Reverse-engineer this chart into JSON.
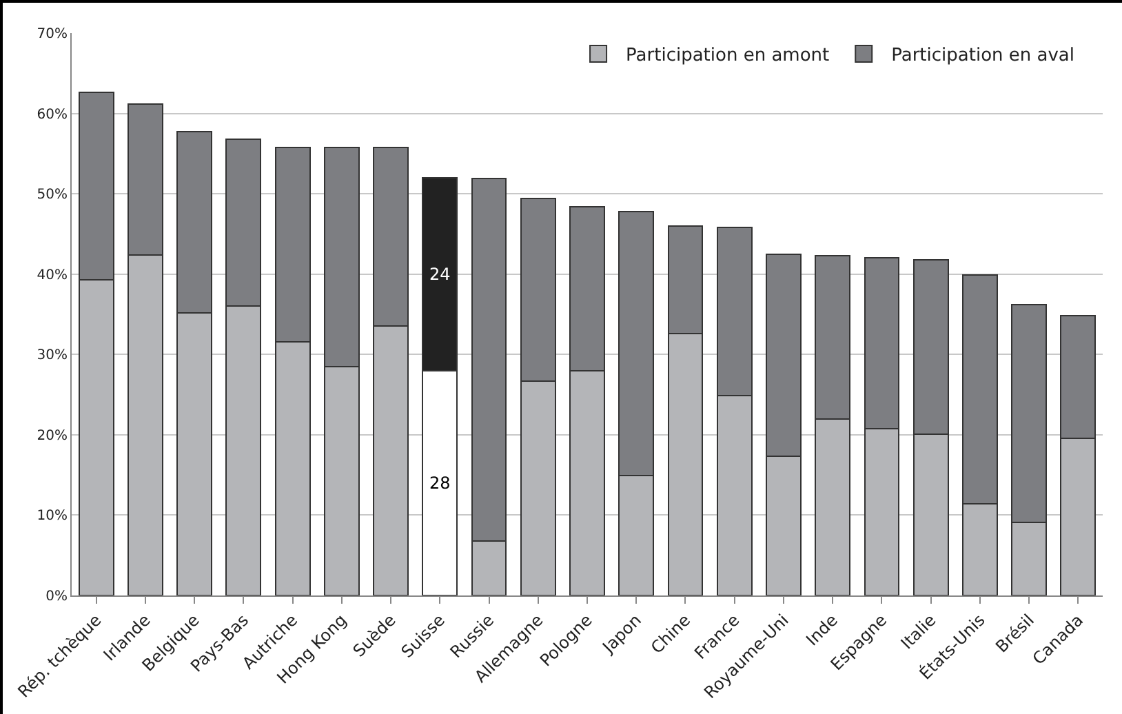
{
  "chart_data": {
    "type": "bar",
    "stacked": true,
    "categories": [
      "Rép. tchèque",
      "Irlande",
      "Belgique",
      "Pays-Bas",
      "Autriche",
      "Hong Kong",
      "Suède",
      "Suisse",
      "Russie",
      "Allemagne",
      "Pologne",
      "Japon",
      "Chine",
      "France",
      "Royaume-Uni",
      "Inde",
      "Espagne",
      "Italie",
      "États-Unis",
      "Brésil",
      "Canada"
    ],
    "series": [
      {
        "name": "Participation en amont",
        "color": "#b4b5b8",
        "colors": [
          "#b4b5b8",
          "#b4b5b8",
          "#b4b5b8",
          "#b4b5b8",
          "#b4b5b8",
          "#b4b5b8",
          "#b4b5b8",
          "#ffffff",
          "#b4b5b8",
          "#b4b5b8",
          "#b4b5b8",
          "#b4b5b8",
          "#b4b5b8",
          "#b4b5b8",
          "#b4b5b8",
          "#b4b5b8",
          "#b4b5b8",
          "#b4b5b8",
          "#b4b5b8",
          "#b4b5b8",
          "#b4b5b8"
        ],
        "values": [
          39.3,
          42.4,
          35.2,
          36.0,
          31.6,
          28.5,
          33.5,
          28,
          6.8,
          26.7,
          28.0,
          14.9,
          32.6,
          24.9,
          17.3,
          22.0,
          20.8,
          20.1,
          11.4,
          9.1,
          19.6
        ],
        "value_labels": [
          null,
          null,
          null,
          null,
          null,
          null,
          null,
          "28",
          null,
          null,
          null,
          null,
          null,
          null,
          null,
          null,
          null,
          null,
          null,
          null,
          null
        ]
      },
      {
        "name": "Participation en aval",
        "color": "#7d7e82",
        "colors": [
          "#7d7e82",
          "#7d7e82",
          "#7d7e82",
          "#7d7e82",
          "#7d7e82",
          "#7d7e82",
          "#7d7e82",
          "#222222",
          "#7d7e82",
          "#7d7e82",
          "#7d7e82",
          "#7d7e82",
          "#7d7e82",
          "#7d7e82",
          "#7d7e82",
          "#7d7e82",
          "#7d7e82",
          "#7d7e82",
          "#7d7e82",
          "#7d7e82",
          "#7d7e82"
        ],
        "values": [
          23.3,
          18.8,
          22.5,
          20.8,
          24.2,
          27.3,
          22.3,
          24,
          45.1,
          22.7,
          20.4,
          32.9,
          13.4,
          20.9,
          25.2,
          20.3,
          21.2,
          21.7,
          28.5,
          27.1,
          15.2
        ],
        "value_labels": [
          null,
          null,
          null,
          null,
          null,
          null,
          null,
          "24",
          null,
          null,
          null,
          null,
          null,
          null,
          null,
          null,
          null,
          null,
          null,
          null,
          null
        ]
      }
    ],
    "ylim": [
      0,
      70
    ],
    "yticks": [
      {
        "value": 0,
        "label": "0%"
      },
      {
        "value": 10,
        "label": "10%"
      },
      {
        "value": 20,
        "label": "20%"
      },
      {
        "value": 30,
        "label": "30%"
      },
      {
        "value": 40,
        "label": "40%"
      },
      {
        "value": 50,
        "label": "50%"
      },
      {
        "value": 60,
        "label": "60%"
      },
      {
        "value": 70,
        "label": "70%"
      }
    ],
    "grid": "y",
    "legend": "top right"
  }
}
